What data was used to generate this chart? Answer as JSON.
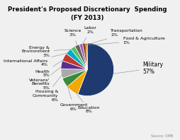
{
  "title": "President's Proposed Discretionary  Spending\n(FY 2013)",
  "source": "Source: OMB",
  "labels": [
    "Military",
    "Education",
    "Government",
    "Housing &\nCommunity",
    "Veterans'\nBenefits",
    "Health",
    "International Affairs",
    "Energy &\nEnvironment",
    "Science",
    "Labor",
    "Transportation",
    "Food & Agriculture"
  ],
  "values": [
    57,
    8,
    6,
    6,
    5,
    5,
    4,
    3,
    3,
    2,
    2,
    1
  ],
  "colors": [
    "#1e3a6e",
    "#f5a800",
    "#3a8c3a",
    "#aaaaaa",
    "#5b2d8e",
    "#c0392b",
    "#00aacc",
    "#5dbe5d",
    "#666666",
    "#9b59b6",
    "#8b4513",
    "#cc6600"
  ],
  "pct_labels": [
    "57%",
    "8%",
    "6%",
    "6%",
    "5%",
    "5%",
    "4%",
    "3%",
    "3%",
    "2%",
    "2%",
    "1%"
  ],
  "startangle": 90,
  "background_color": "#f0f0f0"
}
